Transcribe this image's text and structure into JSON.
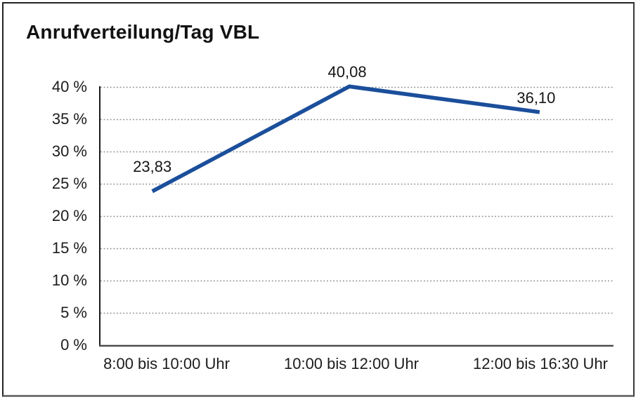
{
  "window": {
    "background_color": "#ffffff",
    "frame_border_color": "#232323"
  },
  "chart_data": {
    "type": "line",
    "title": "Anrufverteilung/Tag VBL",
    "categories": [
      "8:00 bis 10:00 Uhr",
      "10:00 bis 12:00 Uhr",
      "12:00 bis 16:30 Uhr"
    ],
    "series": [
      {
        "values": [
          23.83,
          40.08,
          36.1
        ],
        "point_labels": [
          "23,83",
          "40,08",
          "36,10"
        ],
        "color": "#1b4f9b"
      }
    ],
    "xlabel": "",
    "ylabel": "",
    "ylim": [
      0,
      40
    ],
    "ytick_step": 5,
    "ytick_labels": [
      "0 %",
      "5 %",
      "10 %",
      "15 %",
      "20 %",
      "25 %",
      "30 %",
      "35 %",
      "40 %"
    ],
    "grid": "horizontal-dotted",
    "gridline_color": "#8c8c8c",
    "yaxis_color": "#1a1a1a",
    "baseline_color": "#4c4c4c",
    "legend": "none"
  }
}
